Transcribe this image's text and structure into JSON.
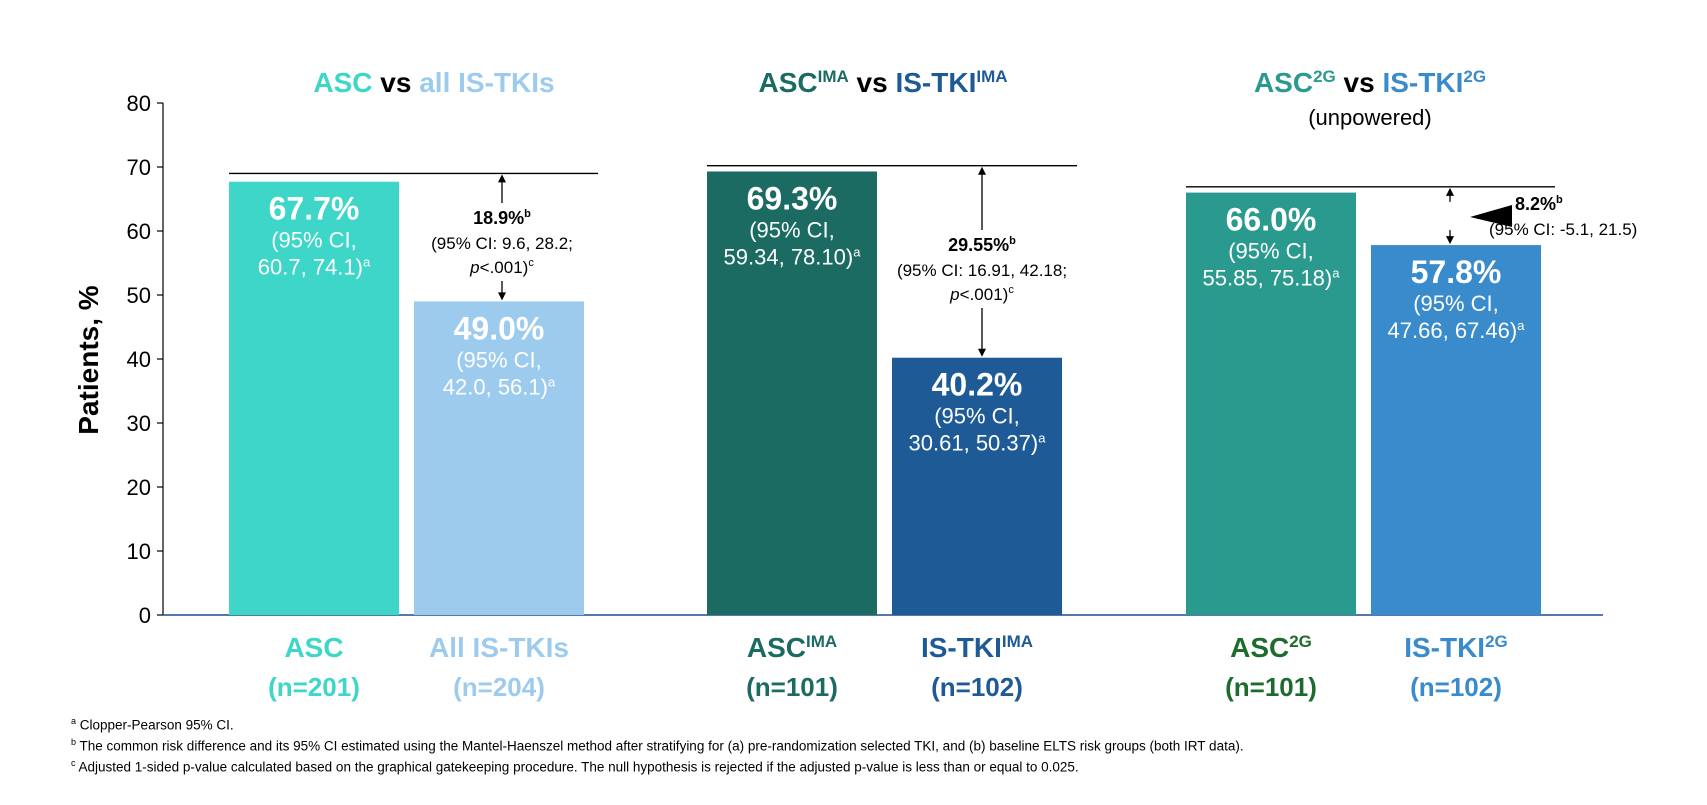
{
  "chart_data": {
    "type": "bar",
    "ylabel": "Patients, %",
    "ylim": [
      0,
      80
    ],
    "yticks": [
      0,
      10,
      20,
      30,
      40,
      50,
      60,
      70,
      80
    ],
    "groups": [
      {
        "title_parts": [
          {
            "text": "ASC",
            "color": "#3DD6C8"
          },
          {
            "text": " vs ",
            "color": "#000000"
          },
          {
            "text": "all IS-TKIs",
            "color": "#9DCBEE"
          }
        ],
        "subtitle": "",
        "bars": [
          {
            "label": "ASC",
            "n": "(n=201)",
            "value": 67.7,
            "value_label": "67.7%",
            "ci_line1": "(95% CI,",
            "ci_line2": "60.7, 74.1)",
            "ci_sup": "a",
            "color": "#3DD6C8",
            "label_color": "#3DD6C8"
          },
          {
            "label": "All IS-TKIs",
            "n": "(n=204)",
            "value": 49.0,
            "value_label": "49.0%",
            "ci_line1": "(95% CI,",
            "ci_line2": "42.0, 56.1)",
            "ci_sup": "a",
            "color": "#9DCBEE",
            "label_color": "#9DCBEE"
          }
        ],
        "diff": {
          "value": "18.9%",
          "sup": "b",
          "line2": "(95% CI: 9.6, 28.2;",
          "line3_italic": "p",
          "line3_rest": "<.001)",
          "line3_sup": "c"
        }
      },
      {
        "title_parts": [
          {
            "text": "ASC",
            "color": "#1B6B63"
          },
          {
            "text": "IMA",
            "color": "#1B6B63",
            "sup": true
          },
          {
            "text": " vs ",
            "color": "#000000"
          },
          {
            "text": "IS-TKI",
            "color": "#1D5A96"
          },
          {
            "text": "IMA",
            "color": "#1D5A96",
            "sup": true
          }
        ],
        "subtitle": "",
        "bars": [
          {
            "label": "ASC",
            "label_sup": "IMA",
            "n": "(n=101)",
            "value": 69.3,
            "value_label": "69.3%",
            "ci_line1": "(95% CI,",
            "ci_line2": "59.34, 78.10)",
            "ci_sup": "a",
            "color": "#1B6B63",
            "label_color": "#1B6B63"
          },
          {
            "label": "IS-TKI",
            "label_sup": "IMA",
            "n": "(n=102)",
            "value": 40.2,
            "value_label": "40.2%",
            "ci_line1": "(95% CI,",
            "ci_line2": "30.61, 50.37)",
            "ci_sup": "a",
            "color": "#1D5A96",
            "label_color": "#1D5A96"
          }
        ],
        "diff": {
          "value": "29.55%",
          "sup": "b",
          "line2": "(95% CI: 16.91, 42.18;",
          "line3_italic": "p",
          "line3_rest": "<.001)",
          "line3_sup": "c"
        }
      },
      {
        "title_parts": [
          {
            "text": "ASC",
            "color": "#2A9A8E"
          },
          {
            "text": "2G",
            "color": "#2A9A8E",
            "sup": true
          },
          {
            "text": " vs ",
            "color": "#000000"
          },
          {
            "text": "IS-TKI",
            "color": "#3A8BCB"
          },
          {
            "text": "2G",
            "color": "#3A8BCB",
            "sup": true
          }
        ],
        "subtitle": "(unpowered)",
        "bars": [
          {
            "label": "ASC",
            "label_sup": "2G",
            "n": "(n=101)",
            "value": 66.0,
            "value_label": "66.0%",
            "ci_line1": "(95% CI,",
            "ci_line2": "55.85, 75.18)",
            "ci_sup": "a",
            "color": "#2A9A8E",
            "label_color": "#1E6B2E"
          },
          {
            "label": "IS-TKI",
            "label_sup": "2G",
            "n": "(n=102)",
            "value": 57.8,
            "value_label": "57.8%",
            "ci_line1": "(95% CI,",
            "ci_line2": "47.66, 67.46)",
            "ci_sup": "a",
            "color": "#3A8BCB",
            "label_color": "#3A8BCB"
          }
        ],
        "diff": {
          "value": "8.2%",
          "sup": "b",
          "line2": "(95% CI: -5.1, 21.5)"
        }
      }
    ]
  },
  "footnotes": [
    {
      "sup": "a",
      "text": "Clopper-Pearson 95% CI."
    },
    {
      "sup": "b",
      "text": "The common risk difference and its 95% CI estimated using the Mantel-Haenszel method after stratifying for (a) pre-randomization selected TKI, and (b) baseline ELTS risk groups (both IRT data)."
    },
    {
      "sup": "c",
      "text": "Adjusted 1-sided p-value calculated based on the graphical gatekeeping procedure. The null hypothesis is rejected if the adjusted p-value is less than or equal to 0.025."
    }
  ]
}
